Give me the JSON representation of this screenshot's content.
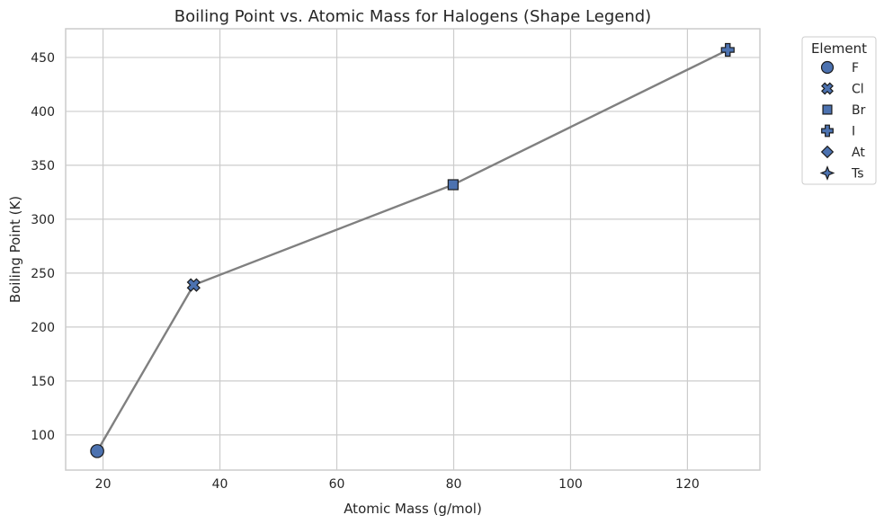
{
  "chart_data": {
    "type": "line",
    "title": "Boiling Point vs. Atomic Mass for Halogens (Shape Legend)",
    "xlabel": "Atomic Mass (g/mol)",
    "ylabel": "Boiling Point (K)",
    "xlim": [
      13.6,
      132.4
    ],
    "ylim": [
      67.4,
      476.6
    ],
    "xticks": [
      20,
      40,
      60,
      80,
      100,
      120
    ],
    "yticks": [
      100,
      150,
      200,
      250,
      300,
      350,
      400,
      450
    ],
    "grid": true,
    "legend": {
      "title": "Element",
      "placement": "outside-top-right",
      "entries": [
        {
          "label": "F",
          "marker": "circle"
        },
        {
          "label": "Cl",
          "marker": "x"
        },
        {
          "label": "Br",
          "marker": "square"
        },
        {
          "label": "I",
          "marker": "plus"
        },
        {
          "label": "At",
          "marker": "diamond"
        },
        {
          "label": "Ts",
          "marker": "star"
        }
      ]
    },
    "points": [
      {
        "element": "F",
        "x": 19.0,
        "y": 85,
        "marker": "circle"
      },
      {
        "element": "Cl",
        "x": 35.5,
        "y": 239,
        "marker": "x"
      },
      {
        "element": "Br",
        "x": 79.9,
        "y": 332,
        "marker": "square"
      },
      {
        "element": "I",
        "x": 126.9,
        "y": 457,
        "marker": "plus"
      }
    ],
    "colors": {
      "line": "#808080",
      "marker_fill": "#4c72b0",
      "marker_edge": "#1a1a1a",
      "grid": "#cccccc",
      "spine": "#cccccc"
    }
  }
}
